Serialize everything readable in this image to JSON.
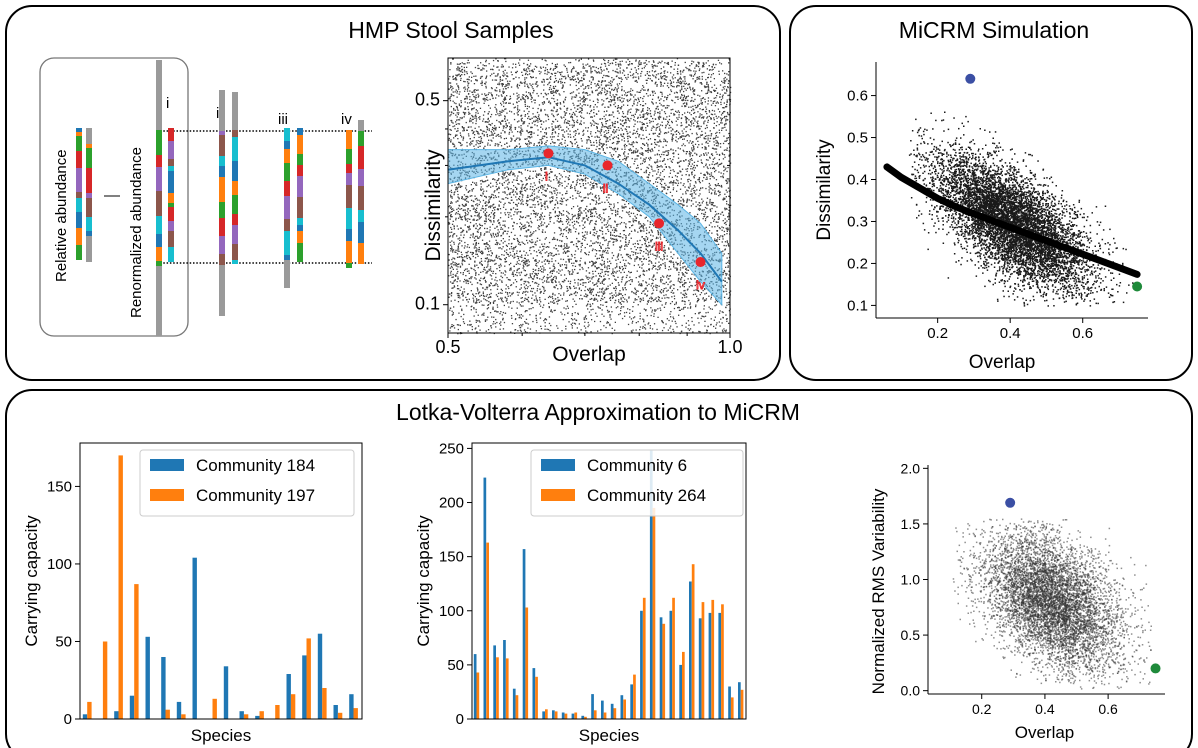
{
  "panels": {
    "hmp_title": "HMP Stool Samples",
    "micrm_title": "MiCRM Simulation",
    "lv_title": "Lotka-Volterra Approximation to MiCRM"
  },
  "schematic": {
    "relative_label": "Relative abundance",
    "renormalized_label": "Renormalized abundance",
    "roman": [
      "i",
      "ii",
      "iii",
      "iv"
    ],
    "colors": [
      "#1f77b4",
      "#ff7f0e",
      "#2ca02c",
      "#d62728",
      "#9467bd",
      "#8c564b",
      "#17becf",
      "#e7ba52",
      "#7f7f7f"
    ]
  },
  "chart_data": [
    {
      "id": "hmp",
      "type": "scatter",
      "xlabel": "Overlap",
      "ylabel": "Dissimilarity",
      "x_scale": "log",
      "y_scale": "log",
      "xlim": [
        0.5,
        1.0
      ],
      "ylim": [
        0.08,
        0.7
      ],
      "xticks": [
        "0.5",
        "1.0"
      ],
      "yticks": [
        "0.1",
        "0.5"
      ],
      "point_color": "#404040",
      "trend": {
        "color": "#1f77b4",
        "x": [
          0.5,
          0.58,
          0.64,
          0.7,
          0.76,
          0.82,
          0.88,
          0.93,
          0.98
        ],
        "y": [
          0.29,
          0.31,
          0.32,
          0.3,
          0.26,
          0.22,
          0.18,
          0.15,
          0.12
        ],
        "band_low": [
          0.26,
          0.29,
          0.3,
          0.28,
          0.24,
          0.2,
          0.15,
          0.12,
          0.1
        ],
        "band_high": [
          0.34,
          0.34,
          0.35,
          0.34,
          0.31,
          0.26,
          0.22,
          0.19,
          0.15
        ]
      },
      "highlights": [
        {
          "label": "i",
          "x": 0.64,
          "y": 0.33
        },
        {
          "label": "ii",
          "x": 0.74,
          "y": 0.3
        },
        {
          "label": "iii",
          "x": 0.84,
          "y": 0.19
        },
        {
          "label": "iv",
          "x": 0.93,
          "y": 0.14
        }
      ]
    },
    {
      "id": "micrm",
      "type": "scatter",
      "xlabel": "Overlap",
      "ylabel": "Dissimilarity",
      "xlim": [
        0.03,
        0.78
      ],
      "ylim": [
        0.07,
        0.68
      ],
      "xticks": [
        0.2,
        0.4,
        0.6
      ],
      "yticks": [
        0.1,
        0.2,
        0.3,
        0.4,
        0.5,
        0.6
      ],
      "point_color": "#1a1a1a",
      "trend": {
        "color": "#000000",
        "x": [
          0.06,
          0.1,
          0.15,
          0.2,
          0.25,
          0.3,
          0.35,
          0.4,
          0.45,
          0.5,
          0.55,
          0.6,
          0.65,
          0.7,
          0.75
        ],
        "y": [
          0.43,
          0.405,
          0.38,
          0.355,
          0.335,
          0.318,
          0.302,
          0.286,
          0.27,
          0.254,
          0.238,
          0.222,
          0.206,
          0.19,
          0.174
        ]
      },
      "highlights": [
        {
          "color": "#3b4fa4",
          "x": 0.29,
          "y": 0.64
        },
        {
          "color": "#1f8a3b",
          "x": 0.75,
          "y": 0.145
        }
      ]
    },
    {
      "id": "bar1",
      "type": "bar",
      "xlabel": "Species",
      "ylabel": "Carrying capacity",
      "ylim": [
        0,
        178
      ],
      "yticks": [
        0,
        50,
        100,
        150
      ],
      "series": [
        {
          "name": "Community 184",
          "color": "#1f77b4",
          "values": [
            3,
            0,
            5,
            15,
            53,
            40,
            11,
            104,
            0,
            34,
            5,
            2,
            0,
            29,
            41,
            55,
            9,
            16
          ]
        },
        {
          "name": "Community 197",
          "color": "#ff7f0e",
          "values": [
            11,
            50,
            170,
            87,
            0,
            6,
            3,
            0,
            13,
            0,
            3,
            5,
            9,
            16,
            52,
            20,
            4,
            7
          ]
        }
      ]
    },
    {
      "id": "bar2",
      "type": "bar",
      "xlabel": "Species",
      "ylabel": "Carrying capacity",
      "ylim": [
        0,
        255
      ],
      "yticks": [
        0,
        50,
        100,
        150,
        200,
        250
      ],
      "series": [
        {
          "name": "Community 6",
          "color": "#1f77b4",
          "values": [
            60,
            223,
            68,
            73,
            28,
            157,
            47,
            7,
            8,
            6,
            5,
            3,
            23,
            17,
            14,
            22,
            32,
            100,
            248,
            94,
            100,
            50,
            127,
            93,
            98,
            98,
            30,
            34
          ]
        },
        {
          "name": "Community 264",
          "color": "#ff7f0e",
          "values": [
            43,
            163,
            57,
            56,
            22,
            103,
            39,
            9,
            7,
            5,
            6,
            2,
            8,
            6,
            10,
            18,
            41,
            112,
            195,
            88,
            112,
            62,
            143,
            108,
            110,
            106,
            20,
            27
          ]
        }
      ]
    },
    {
      "id": "rms",
      "type": "scatter",
      "xlabel": "Overlap",
      "ylabel": "Normalized RMS Variability",
      "xlim": [
        0.03,
        0.78
      ],
      "ylim": [
        -0.03,
        2.03
      ],
      "xticks": [
        0.2,
        0.4,
        0.6
      ],
      "yticks": [
        0.0,
        0.5,
        1.0,
        1.5,
        2.0
      ],
      "point_color": "#333333",
      "highlights": [
        {
          "color": "#3b4fa4",
          "x": 0.29,
          "y": 1.69
        },
        {
          "color": "#1f8a3b",
          "x": 0.75,
          "y": 0.2
        }
      ]
    }
  ]
}
